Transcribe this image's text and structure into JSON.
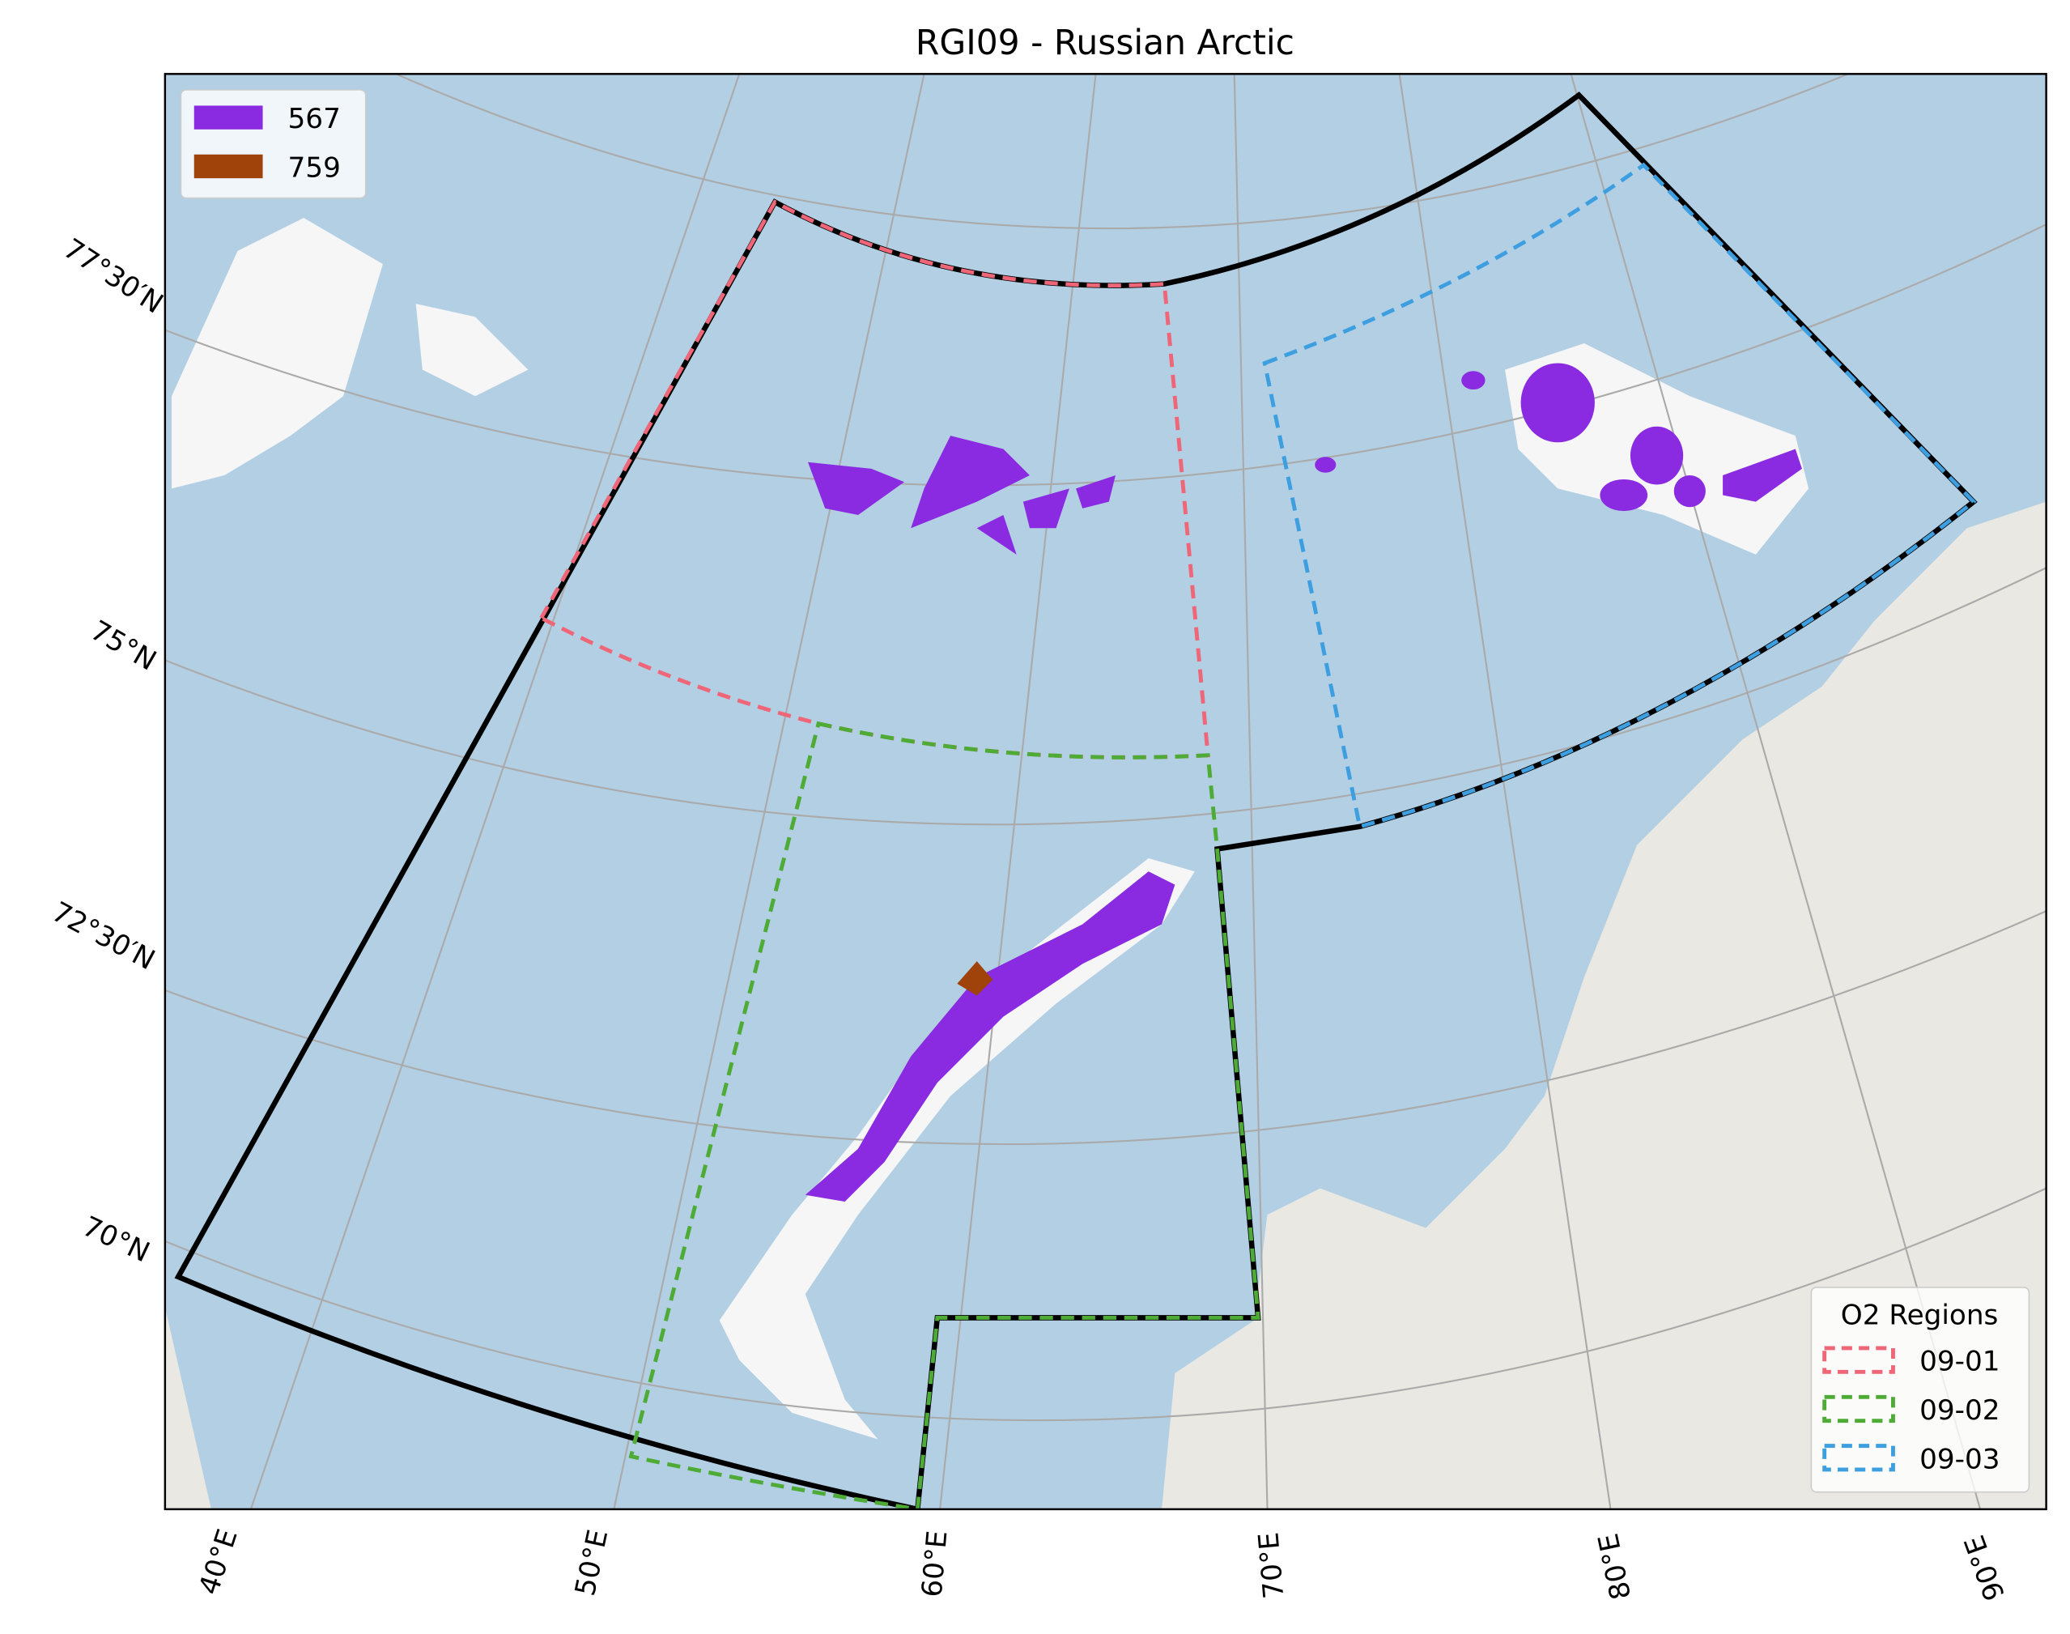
{
  "title": "RGI09 - Russian Arctic",
  "glacier_legend": [
    {
      "label": "567",
      "color": "#8a2be2"
    },
    {
      "label": "759",
      "color": "#a0430a"
    }
  ],
  "region_legend": {
    "title": "O2 Regions",
    "entries": [
      {
        "label": "09-01",
        "color": "#ee6677"
      },
      {
        "label": "09-02",
        "color": "#4eab36"
      },
      {
        "label": "09-03",
        "color": "#3e9fe0"
      }
    ]
  },
  "lon_labels": [
    "40°E",
    "50°E",
    "60°E",
    "70°E",
    "80°E",
    "90°E"
  ],
  "lat_labels": [
    "70°N",
    "72°30′N",
    "75°N",
    "77°30′N"
  ]
}
